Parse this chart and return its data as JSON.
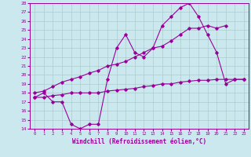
{
  "xlabel": "Windchill (Refroidissement éolien,°C)",
  "ylabel": "",
  "xlim": [
    -0.5,
    23.5
  ],
  "ylim": [
    14,
    28
  ],
  "xticks": [
    0,
    1,
    2,
    3,
    4,
    5,
    6,
    7,
    8,
    9,
    10,
    11,
    12,
    13,
    14,
    15,
    16,
    17,
    18,
    19,
    20,
    21,
    22,
    23
  ],
  "yticks": [
    14,
    15,
    16,
    17,
    18,
    19,
    20,
    21,
    22,
    23,
    24,
    25,
    26,
    27,
    28
  ],
  "bg_color": "#cce8ef",
  "grid_color": "#aacccc",
  "line_color": "#990099",
  "line1_x": [
    0,
    1,
    2,
    3,
    4,
    5,
    6,
    7,
    8,
    9,
    10,
    11,
    12,
    13,
    14,
    15,
    16,
    17,
    18,
    19,
    20,
    21,
    22,
    23
  ],
  "line1_y": [
    17.5,
    18.0,
    17.0,
    17.0,
    14.5,
    14.0,
    14.5,
    14.5,
    19.5,
    23.0,
    24.5,
    22.5,
    22.0,
    23.0,
    25.5,
    26.5,
    27.5,
    28.0,
    26.5,
    24.5,
    22.5,
    19.0,
    19.5,
    19.5
  ],
  "line2_x": [
    0,
    1,
    2,
    3,
    4,
    5,
    6,
    7,
    8,
    9,
    10,
    11,
    12,
    13,
    14,
    15,
    16,
    17,
    18,
    19,
    20,
    21
  ],
  "line2_y": [
    18.0,
    18.2,
    18.7,
    19.2,
    19.5,
    19.8,
    20.2,
    20.5,
    21.0,
    21.2,
    21.5,
    22.0,
    22.5,
    23.0,
    23.2,
    23.8,
    24.5,
    25.2,
    25.2,
    25.5,
    25.2,
    25.5
  ],
  "line3_x": [
    0,
    1,
    2,
    3,
    4,
    5,
    6,
    7,
    8,
    9,
    10,
    11,
    12,
    13,
    14,
    15,
    16,
    17,
    18,
    19,
    20,
    21,
    22,
    23
  ],
  "line3_y": [
    17.5,
    17.5,
    17.7,
    17.8,
    18.0,
    18.0,
    18.0,
    18.0,
    18.2,
    18.3,
    18.4,
    18.5,
    18.7,
    18.8,
    19.0,
    19.0,
    19.2,
    19.3,
    19.4,
    19.4,
    19.5,
    19.5,
    19.5,
    19.5
  ],
  "marker": "D",
  "markersize": 1.8,
  "linewidth": 0.8
}
